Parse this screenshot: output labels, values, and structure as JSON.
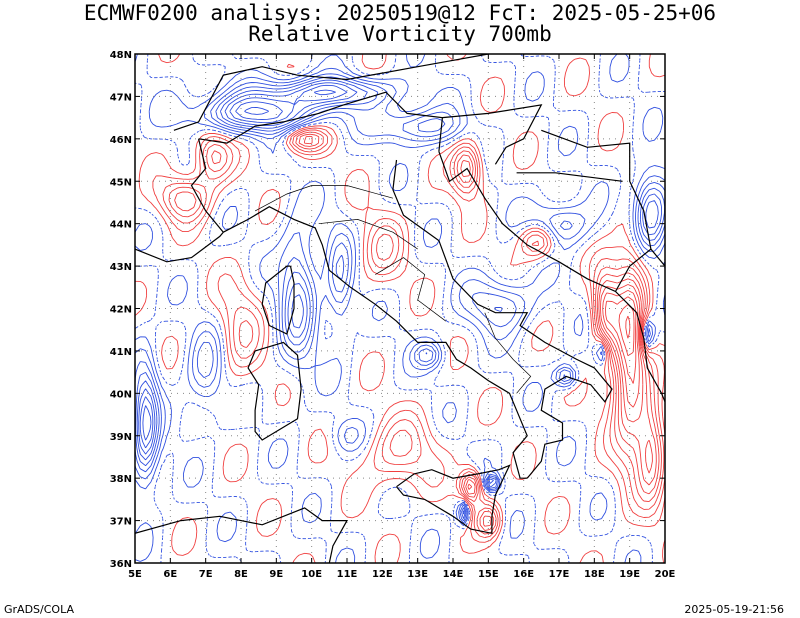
{
  "header": {
    "title_line1": "ECMWF0200 analisys: 20250519@12 FcT: 2025-05-25+06",
    "title_line2": "Relative Vorticity 700mb"
  },
  "map": {
    "projection": "lat-lon",
    "lon_range": [
      5,
      20
    ],
    "lat_range": [
      36,
      48
    ],
    "lon_ticks": [
      "5E",
      "6E",
      "7E",
      "8E",
      "9E",
      "10E",
      "11E",
      "12E",
      "13E",
      "14E",
      "15E",
      "16E",
      "17E",
      "18E",
      "19E",
      "20E"
    ],
    "lat_ticks": [
      "36N",
      "37N",
      "38N",
      "39N",
      "40N",
      "41N",
      "42N",
      "43N",
      "44N",
      "45N",
      "46N",
      "47N",
      "48N"
    ],
    "grid": "dotted",
    "colors": {
      "positive_contours": "#f04040",
      "negative_contours": "#3050e0",
      "zero_contour": "#c070c0",
      "coastline": "#000000"
    }
  },
  "footer": {
    "left": "GrADS/COLA",
    "right": "2025-05-19-21:56"
  }
}
